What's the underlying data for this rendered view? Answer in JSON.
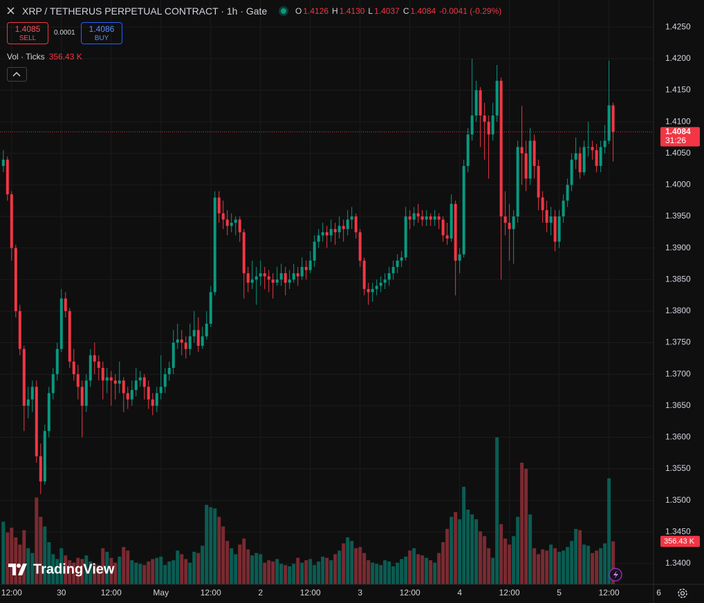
{
  "chart_data": {
    "type": "candlestick",
    "title": "XRP / TETHERUS PERPETUAL CONTRACT · 1h · Gate",
    "ohlc_legend": [
      {
        "key": "O",
        "value": "1.4126"
      },
      {
        "key": "H",
        "value": "1.4130"
      },
      {
        "key": "L",
        "value": "1.4037"
      },
      {
        "key": "C",
        "value": "1.4084"
      }
    ],
    "change": "-0.0041 (-0.29%)",
    "sell": {
      "price": "1.4085",
      "label": "SELL"
    },
    "spread": "0.0001",
    "buy": {
      "price": "1.4086",
      "label": "BUY"
    },
    "watermark": "TradingView",
    "up_color": "#089981",
    "down_color": "#f23645",
    "volume_up_color": "#0b5c52",
    "volume_down_color": "#7a2a31",
    "grid": true,
    "xlim": [
      -0.8,
      155.9
    ],
    "xticks": [
      {
        "value": 2,
        "label": "12:00"
      },
      {
        "value": 14,
        "label": "30"
      },
      {
        "value": 26,
        "label": "12:00"
      },
      {
        "value": 38,
        "label": "May"
      },
      {
        "value": 50,
        "label": "12:00"
      },
      {
        "value": 62,
        "label": "2"
      },
      {
        "value": 74,
        "label": "12:00"
      },
      {
        "value": 86,
        "label": "3"
      },
      {
        "value": 98,
        "label": "12:00"
      },
      {
        "value": 110,
        "label": "4"
      },
      {
        "value": 122,
        "label": "12:00"
      },
      {
        "value": 134,
        "label": "5"
      },
      {
        "value": 146,
        "label": "12:00"
      },
      {
        "value": 158,
        "label": "6"
      }
    ],
    "ylim": [
      1.3367,
      1.4293
    ],
    "yticks": [
      {
        "value": 1.34,
        "label": "1.3400"
      },
      {
        "value": 1.345,
        "label": "1.3450"
      },
      {
        "value": 1.35,
        "label": "1.3500"
      },
      {
        "value": 1.355,
        "label": "1.3550"
      },
      {
        "value": 1.36,
        "label": "1.3600"
      },
      {
        "value": 1.365,
        "label": "1.3650"
      },
      {
        "value": 1.37,
        "label": "1.3700"
      },
      {
        "value": 1.375,
        "label": "1.3750"
      },
      {
        "value": 1.38,
        "label": "1.3800"
      },
      {
        "value": 1.385,
        "label": "1.3850"
      },
      {
        "value": 1.39,
        "label": "1.3900"
      },
      {
        "value": 1.395,
        "label": "1.3950"
      },
      {
        "value": 1.4,
        "label": "1.4000"
      },
      {
        "value": 1.405,
        "label": "1.4050"
      },
      {
        "value": 1.41,
        "label": "1.4100"
      },
      {
        "value": 1.415,
        "label": "1.4150"
      },
      {
        "value": 1.42,
        "label": "1.4200"
      },
      {
        "value": 1.425,
        "label": "1.4250"
      }
    ],
    "last_price": {
      "value": 1.4084,
      "label": "1.4084",
      "countdown": "31:26"
    },
    "candles": [
      [
        1.403,
        1.4055,
        1.402,
        1.404
      ],
      [
        1.404,
        1.4045,
        1.3975,
        1.3985
      ],
      [
        1.3985,
        1.399,
        1.388,
        1.39
      ],
      [
        1.39,
        1.3905,
        1.379,
        1.38
      ],
      [
        1.38,
        1.381,
        1.373,
        1.374
      ],
      [
        1.374,
        1.3745,
        1.361,
        1.365
      ],
      [
        1.365,
        1.368,
        1.363,
        1.366
      ],
      [
        1.366,
        1.369,
        1.364,
        1.368
      ],
      [
        1.368,
        1.369,
        1.356,
        1.357
      ],
      [
        1.357,
        1.359,
        1.351,
        1.353
      ],
      [
        1.353,
        1.362,
        1.3525,
        1.361
      ],
      [
        1.361,
        1.368,
        1.36,
        1.367
      ],
      [
        1.367,
        1.371,
        1.366,
        1.37
      ],
      [
        1.37,
        1.375,
        1.369,
        1.374
      ],
      [
        1.374,
        1.3835,
        1.3735,
        1.382
      ],
      [
        1.382,
        1.383,
        1.379,
        1.38
      ],
      [
        1.38,
        1.3805,
        1.371,
        1.372
      ],
      [
        1.372,
        1.374,
        1.369,
        1.37
      ],
      [
        1.37,
        1.3715,
        1.366,
        1.368
      ],
      [
        1.368,
        1.369,
        1.36,
        1.365
      ],
      [
        1.365,
        1.37,
        1.364,
        1.369
      ],
      [
        1.369,
        1.374,
        1.368,
        1.373
      ],
      [
        1.373,
        1.375,
        1.37,
        1.372
      ],
      [
        1.372,
        1.373,
        1.369,
        1.371
      ],
      [
        1.371,
        1.372,
        1.366,
        1.369
      ],
      [
        1.369,
        1.371,
        1.367,
        1.3695
      ],
      [
        1.3695,
        1.3705,
        1.365,
        1.369
      ],
      [
        1.369,
        1.37,
        1.366,
        1.3685
      ],
      [
        1.3685,
        1.372,
        1.367,
        1.369
      ],
      [
        1.369,
        1.3695,
        1.364,
        1.367
      ],
      [
        1.367,
        1.368,
        1.3645,
        1.366
      ],
      [
        1.366,
        1.369,
        1.365,
        1.3675
      ],
      [
        1.3675,
        1.371,
        1.3665,
        1.369
      ],
      [
        1.369,
        1.3705,
        1.368,
        1.3695
      ],
      [
        1.3695,
        1.37,
        1.366,
        1.368
      ],
      [
        1.368,
        1.369,
        1.3645,
        1.366
      ],
      [
        1.366,
        1.367,
        1.3635,
        1.365
      ],
      [
        1.365,
        1.368,
        1.364,
        1.367
      ],
      [
        1.367,
        1.373,
        1.366,
        1.368
      ],
      [
        1.368,
        1.371,
        1.367,
        1.37
      ],
      [
        1.37,
        1.372,
        1.369,
        1.371
      ],
      [
        1.371,
        1.377,
        1.37,
        1.375
      ],
      [
        1.375,
        1.378,
        1.374,
        1.3755
      ],
      [
        1.3755,
        1.377,
        1.373,
        1.375
      ],
      [
        1.375,
        1.376,
        1.3725,
        1.374
      ],
      [
        1.374,
        1.378,
        1.373,
        1.376
      ],
      [
        1.376,
        1.38,
        1.375,
        1.377
      ],
      [
        1.377,
        1.379,
        1.3735,
        1.3745
      ],
      [
        1.3745,
        1.3775,
        1.374,
        1.376
      ],
      [
        1.376,
        1.38,
        1.3755,
        1.378
      ],
      [
        1.378,
        1.384,
        1.3775,
        1.383
      ],
      [
        1.383,
        1.399,
        1.3825,
        1.398
      ],
      [
        1.398,
        1.399,
        1.394,
        1.3955
      ],
      [
        1.3955,
        1.3975,
        1.393,
        1.3945
      ],
      [
        1.3945,
        1.396,
        1.392,
        1.3935
      ],
      [
        1.3935,
        1.3955,
        1.3925,
        1.394
      ],
      [
        1.394,
        1.395,
        1.392,
        1.3945
      ],
      [
        1.3945,
        1.395,
        1.391,
        1.3925
      ],
      [
        1.3925,
        1.393,
        1.382,
        1.386
      ],
      [
        1.386,
        1.387,
        1.383,
        1.3845
      ],
      [
        1.3845,
        1.388,
        1.3835,
        1.385
      ],
      [
        1.385,
        1.387,
        1.381,
        1.3855
      ],
      [
        1.3855,
        1.388,
        1.384,
        1.386
      ],
      [
        1.386,
        1.387,
        1.3835,
        1.3855
      ],
      [
        1.3855,
        1.3865,
        1.383,
        1.385
      ],
      [
        1.385,
        1.386,
        1.382,
        1.3845
      ],
      [
        1.3845,
        1.387,
        1.384,
        1.385
      ],
      [
        1.385,
        1.3875,
        1.384,
        1.386
      ],
      [
        1.386,
        1.387,
        1.3825,
        1.3845
      ],
      [
        1.3845,
        1.3865,
        1.3835,
        1.385
      ],
      [
        1.385,
        1.3875,
        1.3845,
        1.386
      ],
      [
        1.386,
        1.387,
        1.384,
        1.3855
      ],
      [
        1.3855,
        1.3885,
        1.385,
        1.387
      ],
      [
        1.387,
        1.388,
        1.385,
        1.3865
      ],
      [
        1.3865,
        1.3895,
        1.386,
        1.388
      ],
      [
        1.388,
        1.392,
        1.387,
        1.391
      ],
      [
        1.391,
        1.393,
        1.39,
        1.392
      ],
      [
        1.392,
        1.394,
        1.391,
        1.3925
      ],
      [
        1.3925,
        1.3935,
        1.39,
        1.392
      ],
      [
        1.392,
        1.3945,
        1.391,
        1.393
      ],
      [
        1.393,
        1.394,
        1.3905,
        1.3925
      ],
      [
        1.3925,
        1.395,
        1.3915,
        1.3935
      ],
      [
        1.3935,
        1.3945,
        1.391,
        1.393
      ],
      [
        1.393,
        1.396,
        1.392,
        1.3945
      ],
      [
        1.3945,
        1.3965,
        1.393,
        1.395
      ],
      [
        1.395,
        1.3955,
        1.3915,
        1.3925
      ],
      [
        1.3925,
        1.393,
        1.387,
        1.388
      ],
      [
        1.388,
        1.3885,
        1.3825,
        1.3835
      ],
      [
        1.3835,
        1.3845,
        1.381,
        1.383
      ],
      [
        1.383,
        1.3845,
        1.3815,
        1.3835
      ],
      [
        1.3835,
        1.385,
        1.3825,
        1.384
      ],
      [
        1.384,
        1.3855,
        1.383,
        1.3845
      ],
      [
        1.3845,
        1.386,
        1.3835,
        1.385
      ],
      [
        1.385,
        1.387,
        1.384,
        1.386
      ],
      [
        1.386,
        1.388,
        1.385,
        1.387
      ],
      [
        1.387,
        1.389,
        1.386,
        1.388
      ],
      [
        1.388,
        1.3895,
        1.387,
        1.3885
      ],
      [
        1.3885,
        1.3965,
        1.388,
        1.395
      ],
      [
        1.395,
        1.396,
        1.393,
        1.3945
      ],
      [
        1.3945,
        1.3965,
        1.3935,
        1.3955
      ],
      [
        1.3955,
        1.397,
        1.394,
        1.395
      ],
      [
        1.395,
        1.396,
        1.3935,
        1.3945
      ],
      [
        1.3945,
        1.396,
        1.3935,
        1.395
      ],
      [
        1.395,
        1.3955,
        1.3935,
        1.3945
      ],
      [
        1.3945,
        1.396,
        1.3935,
        1.395
      ],
      [
        1.395,
        1.3955,
        1.393,
        1.3945
      ],
      [
        1.3945,
        1.395,
        1.391,
        1.392
      ],
      [
        1.392,
        1.394,
        1.3905,
        1.3915
      ],
      [
        1.3915,
        1.3985,
        1.391,
        1.397
      ],
      [
        1.397,
        1.3975,
        1.3825,
        1.388
      ],
      [
        1.388,
        1.39,
        1.386,
        1.389
      ],
      [
        1.389,
        1.404,
        1.3885,
        1.403
      ],
      [
        1.403,
        1.409,
        1.402,
        1.408
      ],
      [
        1.408,
        1.42,
        1.407,
        1.411
      ],
      [
        1.411,
        1.4165,
        1.41,
        1.415
      ],
      [
        1.415,
        1.4155,
        1.406,
        1.411
      ],
      [
        1.411,
        1.413,
        1.404,
        1.41
      ],
      [
        1.41,
        1.411,
        1.401,
        1.408
      ],
      [
        1.408,
        1.413,
        1.407,
        1.411
      ],
      [
        1.411,
        1.419,
        1.41,
        1.4165
      ],
      [
        1.4165,
        1.417,
        1.385,
        1.395
      ],
      [
        1.395,
        1.399,
        1.392,
        1.394
      ],
      [
        1.394,
        1.397,
        1.388,
        1.393
      ],
      [
        1.393,
        1.396,
        1.3875,
        1.395
      ],
      [
        1.395,
        1.407,
        1.394,
        1.406
      ],
      [
        1.406,
        1.4125,
        1.4,
        1.405
      ],
      [
        1.405,
        1.407,
        1.399,
        1.401
      ],
      [
        1.401,
        1.409,
        1.4,
        1.407
      ],
      [
        1.407,
        1.408,
        1.401,
        1.403
      ],
      [
        1.403,
        1.404,
        1.396,
        1.398
      ],
      [
        1.398,
        1.399,
        1.394,
        1.396
      ],
      [
        1.396,
        1.3975,
        1.3925,
        1.394
      ],
      [
        1.394,
        1.3965,
        1.392,
        1.395
      ],
      [
        1.395,
        1.396,
        1.3895,
        1.391
      ],
      [
        1.391,
        1.396,
        1.39,
        1.395
      ],
      [
        1.395,
        1.3985,
        1.394,
        1.3975
      ],
      [
        1.3975,
        1.401,
        1.3965,
        1.4
      ],
      [
        1.4,
        1.405,
        1.399,
        1.404
      ],
      [
        1.404,
        1.4075,
        1.4025,
        1.405
      ],
      [
        1.405,
        1.406,
        1.401,
        1.402
      ],
      [
        1.402,
        1.407,
        1.4015,
        1.406
      ],
      [
        1.406,
        1.41,
        1.4045,
        1.406
      ],
      [
        1.406,
        1.407,
        1.404,
        1.4055
      ],
      [
        1.4055,
        1.4065,
        1.402,
        1.403
      ],
      [
        1.403,
        1.407,
        1.402,
        1.406
      ],
      [
        1.406,
        1.4095,
        1.405,
        1.407
      ],
      [
        1.407,
        1.4197,
        1.4065,
        1.4126
      ],
      [
        1.4126,
        1.413,
        1.4037,
        1.4084
      ]
    ],
    "volume": {
      "name": "Vol · Ticks",
      "last_label": "356.43 K",
      "lim": [
        0,
        4850
      ],
      "values": [
        520,
        430,
        470,
        390,
        330,
        450,
        300,
        260,
        720,
        560,
        480,
        350,
        250,
        210,
        300,
        240,
        200,
        180,
        220,
        210,
        240,
        190,
        170,
        160,
        300,
        270,
        220,
        180,
        230,
        310,
        280,
        200,
        180,
        170,
        160,
        190,
        210,
        220,
        230,
        160,
        190,
        200,
        280,
        250,
        210,
        180,
        270,
        260,
        320,
        660,
        640,
        630,
        560,
        480,
        360,
        300,
        250,
        330,
        380,
        290,
        240,
        260,
        250,
        180,
        200,
        190,
        210,
        170,
        160,
        150,
        170,
        220,
        180,
        200,
        210,
        160,
        190,
        230,
        220,
        200,
        250,
        280,
        340,
        390,
        360,
        300,
        310,
        260,
        200,
        180,
        170,
        160,
        200,
        190,
        150,
        180,
        210,
        230,
        280,
        300,
        250,
        240,
        220,
        200,
        180,
        260,
        350,
        460,
        560,
        600,
        540,
        810,
        620,
        580,
        540,
        440,
        400,
        300,
        220,
        1220,
        500,
        380,
        330,
        400,
        560,
        1010,
        960,
        580,
        300,
        250,
        290,
        280,
        330,
        300,
        270,
        280,
        310,
        360,
        460,
        450,
        330,
        320,
        260,
        280,
        300,
        340,
        880,
        356.43
      ]
    }
  }
}
